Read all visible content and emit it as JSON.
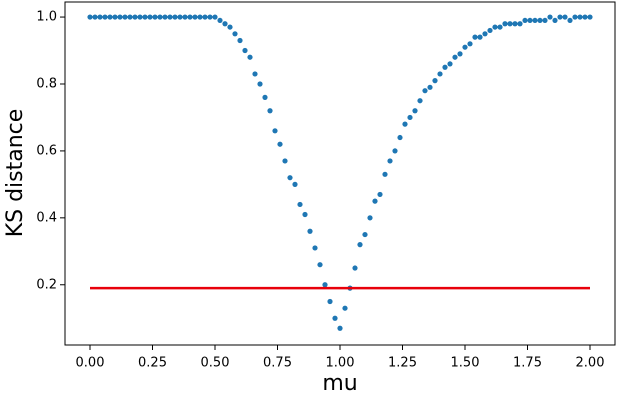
{
  "chart_data": {
    "type": "scatter",
    "xlabel": "mu",
    "ylabel": "KS distance",
    "color": "#1f77b4",
    "x": [
      0,
      0.02,
      0.04,
      0.06,
      0.08,
      0.1,
      0.12,
      0.14,
      0.16,
      0.18,
      0.2,
      0.22,
      0.24,
      0.26,
      0.28,
      0.3,
      0.32,
      0.34,
      0.36,
      0.38,
      0.4,
      0.42,
      0.44,
      0.46,
      0.48,
      0.5,
      0.52,
      0.54,
      0.56,
      0.58,
      0.6,
      0.62,
      0.64,
      0.66,
      0.68,
      0.7,
      0.72,
      0.74,
      0.76,
      0.78,
      0.8,
      0.82,
      0.84,
      0.86,
      0.88,
      0.9,
      0.92,
      0.94,
      0.96,
      0.98,
      1.0,
      1.02,
      1.04,
      1.06,
      1.08,
      1.1,
      1.12,
      1.14,
      1.16,
      1.18,
      1.2,
      1.22,
      1.24,
      1.26,
      1.28,
      1.3,
      1.32,
      1.34,
      1.36,
      1.38,
      1.4,
      1.42,
      1.44,
      1.46,
      1.48,
      1.5,
      1.52,
      1.54,
      1.56,
      1.58,
      1.6,
      1.62,
      1.64,
      1.66,
      1.68,
      1.7,
      1.72,
      1.74,
      1.76,
      1.78,
      1.8,
      1.82,
      1.84,
      1.86,
      1.88,
      1.9,
      1.92,
      1.94,
      1.96,
      1.98,
      2.0
    ],
    "values": [
      1,
      1,
      1,
      1,
      1,
      1,
      1,
      1,
      1,
      1,
      1,
      1,
      1,
      1,
      1,
      1,
      1,
      1,
      1,
      1,
      1,
      1,
      1,
      1,
      1,
      1,
      0.99,
      0.98,
      0.97,
      0.95,
      0.93,
      0.9,
      0.88,
      0.83,
      0.8,
      0.76,
      0.72,
      0.66,
      0.62,
      0.57,
      0.52,
      0.5,
      0.44,
      0.41,
      0.36,
      0.31,
      0.26,
      0.2,
      0.15,
      0.1,
      0.07,
      0.13,
      0.19,
      0.25,
      0.32,
      0.35,
      0.4,
      0.45,
      0.47,
      0.53,
      0.57,
      0.6,
      0.64,
      0.68,
      0.7,
      0.72,
      0.75,
      0.78,
      0.79,
      0.81,
      0.83,
      0.85,
      0.86,
      0.88,
      0.89,
      0.91,
      0.92,
      0.94,
      0.94,
      0.95,
      0.96,
      0.97,
      0.97,
      0.98,
      0.98,
      0.98,
      0.98,
      0.99,
      0.99,
      0.99,
      0.99,
      0.99,
      1,
      0.99,
      1,
      1,
      0.99,
      1,
      1,
      1,
      1
    ],
    "reference_line": {
      "x": [
        0,
        2
      ],
      "values": [
        0.19,
        0.19
      ],
      "color": "#e8000b"
    },
    "xlim": [
      -0.1,
      2.1
    ],
    "ylim": [
      0.02,
      1.045
    ],
    "xticks": [
      {
        "value": 0,
        "label": "0.00"
      },
      {
        "value": 0.25,
        "label": "0.25"
      },
      {
        "value": 0.5,
        "label": "0.50"
      },
      {
        "value": 0.75,
        "label": "0.75"
      },
      {
        "value": 1,
        "label": "1.00"
      },
      {
        "value": 1.25,
        "label": "1.25"
      },
      {
        "value": 1.5,
        "label": "1.50"
      },
      {
        "value": 1.75,
        "label": "1.75"
      },
      {
        "value": 2,
        "label": "2.00"
      }
    ],
    "yticks": [
      0.2,
      0.4,
      0.6,
      {
        "value": 0.8,
        "label": "0.8"
      },
      {
        "value": 1,
        "label": "1.0"
      }
    ]
  }
}
